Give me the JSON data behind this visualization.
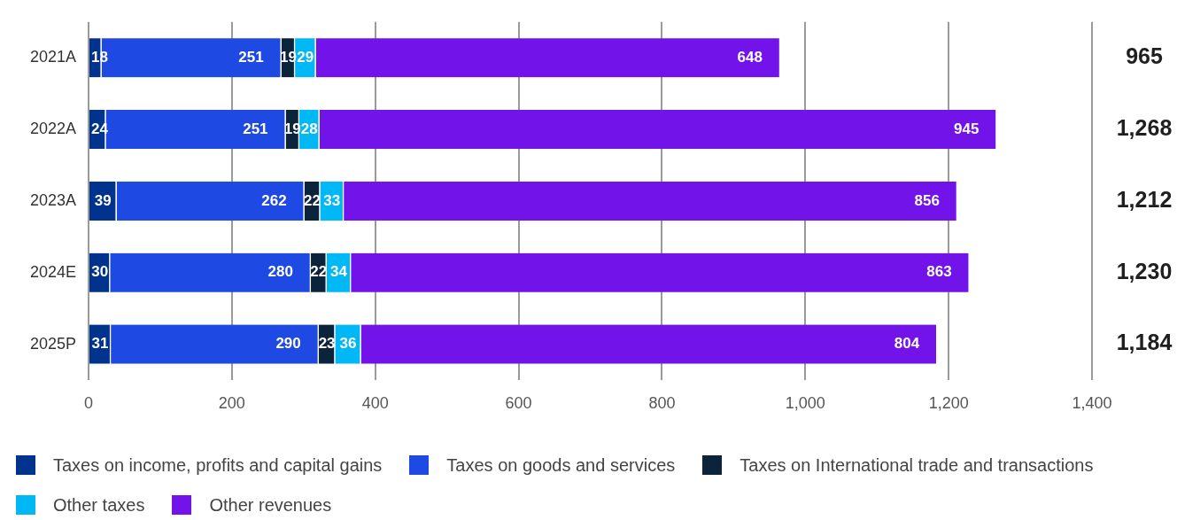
{
  "chart_data": {
    "type": "bar",
    "orientation": "horizontal",
    "stacked": true,
    "categories": [
      "2021A",
      "2022A",
      "2023A",
      "2024E",
      "2025P"
    ],
    "series": [
      {
        "name": "Taxes on income, profits and capital gains",
        "color": "#00338d",
        "values": [
          18,
          24,
          39,
          30,
          31
        ]
      },
      {
        "name": "Taxes on goods and services",
        "color": "#1e49e2",
        "values": [
          251,
          251,
          262,
          280,
          290
        ]
      },
      {
        "name": "Taxes on International trade and transactions",
        "color": "#0c233c",
        "values": [
          19,
          19,
          22,
          22,
          23
        ]
      },
      {
        "name": "Other taxes",
        "color": "#00b8f5",
        "values": [
          29,
          28,
          33,
          34,
          36
        ]
      },
      {
        "name": "Other revenues",
        "color": "#7213ea",
        "values": [
          648,
          945,
          856,
          863,
          804
        ]
      }
    ],
    "xlim": [
      0,
      1400
    ],
    "xticks": [
      0,
      200,
      400,
      600,
      800,
      {
        "value": 1000,
        "label": "1,000"
      },
      {
        "value": 1200,
        "label": "1,200"
      },
      {
        "value": 1400,
        "label": "1,400"
      }
    ],
    "grid": "x",
    "legend": "bottom",
    "data_labels": true,
    "annotations": [
      "965",
      "1,268",
      "1,212",
      "1,230",
      "1,184"
    ]
  }
}
